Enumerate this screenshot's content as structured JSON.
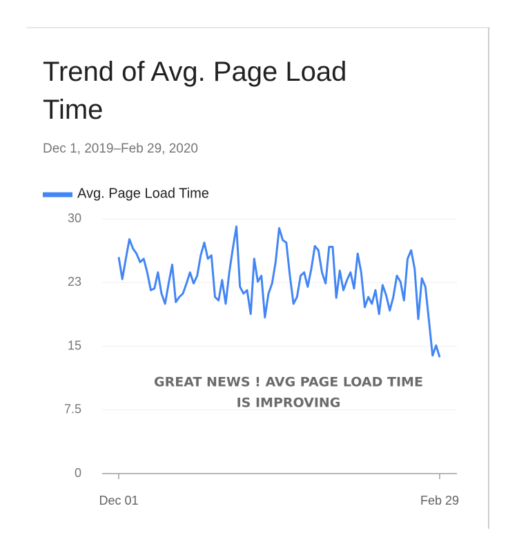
{
  "chart_data": {
    "type": "line",
    "title": "Trend of Avg. Page Load Time",
    "subtitle": "Dec 1, 2019–Feb 29, 2020",
    "annotation": [
      "GREAT NEWS ! AVG PAGE LOAD TIME",
      "IS IMPROVING"
    ],
    "categories": [
      "Dec 01",
      null,
      null,
      null,
      null,
      null,
      null,
      null,
      null,
      null,
      null,
      null,
      null,
      null,
      null,
      null,
      null,
      null,
      null,
      null,
      null,
      null,
      null,
      null,
      null,
      null,
      null,
      null,
      null,
      null,
      null,
      null,
      null,
      null,
      null,
      null,
      null,
      null,
      null,
      null,
      null,
      null,
      null,
      null,
      null,
      null,
      null,
      null,
      null,
      null,
      null,
      null,
      null,
      null,
      null,
      null,
      null,
      null,
      null,
      null,
      null,
      null,
      null,
      null,
      null,
      null,
      null,
      null,
      null,
      null,
      null,
      null,
      null,
      null,
      null,
      null,
      null,
      null,
      null,
      null,
      null,
      null,
      null,
      null,
      null,
      null,
      null,
      null,
      null,
      null,
      "Feb 29"
    ],
    "series": [
      {
        "name": "Avg. Page Load Time",
        "color": "#4285f4",
        "values": [
          25.5,
          22.9,
          25.3,
          27.6,
          26.5,
          25.9,
          24.9,
          25.3,
          23.7,
          21.6,
          21.8,
          23.7,
          21.2,
          20.0,
          22.4,
          24.6,
          20.2,
          20.8,
          21.2,
          22.4,
          23.7,
          22.4,
          23.3,
          25.7,
          27.2,
          25.3,
          25.7,
          20.8,
          20.4,
          22.8,
          20.0,
          23.7,
          26.5,
          29.1,
          22.0,
          21.2,
          21.6,
          18.8,
          25.3,
          22.6,
          23.3,
          18.4,
          21.2,
          22.4,
          24.9,
          28.9,
          27.5,
          27.2,
          23.3,
          20.0,
          20.8,
          23.3,
          23.7,
          22.0,
          24.1,
          26.8,
          26.3,
          23.7,
          22.4,
          26.7,
          26.7,
          20.7,
          23.9,
          21.6,
          22.8,
          23.7,
          21.8,
          25.9,
          23.7,
          19.6,
          20.8,
          20.0,
          21.6,
          18.8,
          22.2,
          21.0,
          19.2,
          20.8,
          23.3,
          22.6,
          20.4,
          25.3,
          26.3,
          24.1,
          18.2,
          23.0,
          22.0,
          18.0,
          13.9,
          15.1,
          13.7
        ]
      }
    ],
    "ylim": [
      0,
      30
    ],
    "yticks": [
      0,
      7.5,
      15,
      {
        "value": 22.5,
        "label": "23"
      },
      30
    ],
    "grid": true
  }
}
